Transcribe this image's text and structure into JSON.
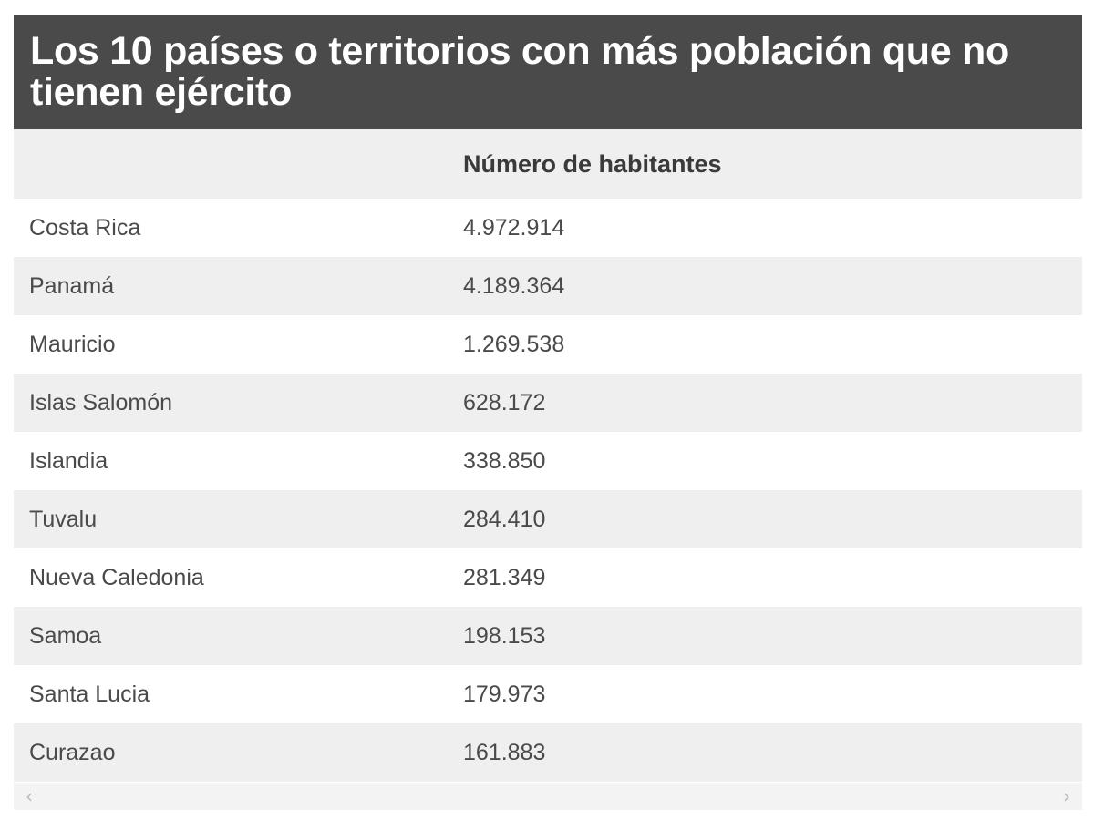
{
  "chart_data": {
    "type": "table",
    "title": "Los 10 países o territorios con más población que no tienen ejército",
    "columns": [
      "",
      "Número de habitantes"
    ],
    "rows": [
      {
        "country": "Costa Rica",
        "population": "4.972.914"
      },
      {
        "country": "Panamá",
        "population": "4.189.364"
      },
      {
        "country": "Mauricio",
        "population": "1.269.538"
      },
      {
        "country": "Islas Salomón",
        "population": "628.172"
      },
      {
        "country": "Islandia",
        "population": "338.850"
      },
      {
        "country": "Tuvalu",
        "population": "284.410"
      },
      {
        "country": "Nueva Caledonia",
        "population": "281.349"
      },
      {
        "country": "Samoa",
        "population": "198.153"
      },
      {
        "country": "Santa Lucia",
        "population": "179.973"
      },
      {
        "country": "Curazao",
        "population": "161.883"
      }
    ]
  },
  "scrollbar": {
    "left_icon": "chevron-left",
    "right_icon": "chevron-right",
    "left_glyph": "‹",
    "right_glyph": "›"
  },
  "colors": {
    "title_background": "#4a4a4a",
    "title_text": "#ffffff",
    "stripe": "#efefef"
  }
}
